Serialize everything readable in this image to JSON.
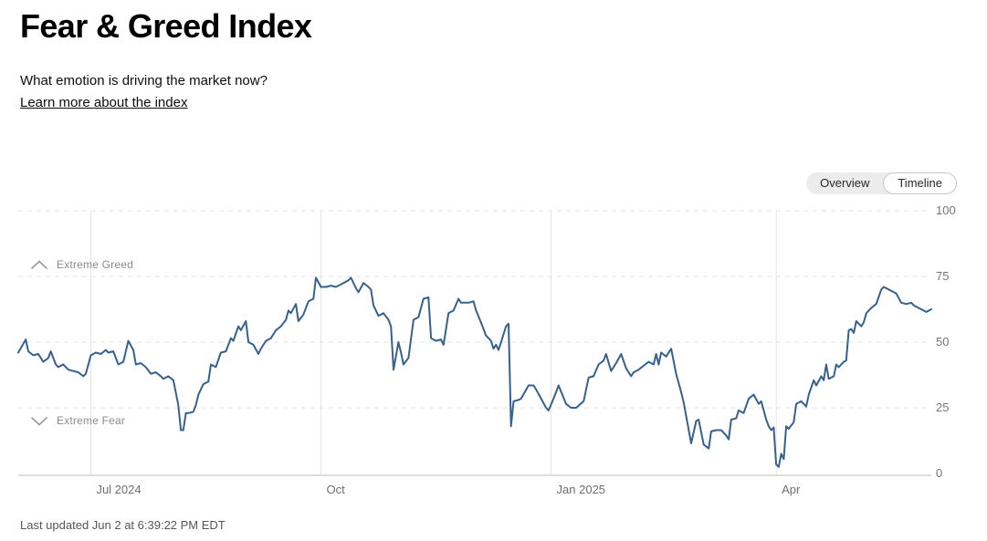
{
  "header": {
    "title": "Fear & Greed Index",
    "subtitle": "What emotion is driving the market now?",
    "link_label": "Learn more about the index"
  },
  "view_toggle": {
    "options": [
      "Overview",
      "Timeline"
    ],
    "selected": "Timeline"
  },
  "footer": {
    "last_updated": "Last updated Jun 2 at 6:39:22 PM EDT"
  },
  "colors": {
    "line": "#36618f",
    "grid_vertical": "#e5e5e5",
    "grid_dashed": "#e0e0e0",
    "axis_zero": "#c7c7c7",
    "tick_text": "#757575",
    "zone_text": "#8b8b8b",
    "chevron_icon": "#9b9b9b"
  },
  "chart_data": {
    "type": "line",
    "title": "Fear & Greed Index timeline",
    "xlabel": "",
    "ylabel": "",
    "x_axis": {
      "unit": "days since Jun 2 2024",
      "domain_days": [
        0,
        365
      ],
      "ticks": [
        {
          "label": "Jul 2024",
          "day": 29
        },
        {
          "label": "Oct",
          "day": 121
        },
        {
          "label": "Jan 2025",
          "day": 213
        },
        {
          "label": "Apr",
          "day": 303
        }
      ]
    },
    "y_axis": {
      "min": 0,
      "max": 100,
      "ticks": [
        100,
        75,
        50,
        25,
        0
      ],
      "position": "right"
    },
    "grid": {
      "horizontal": "dashed",
      "vertical": "solid",
      "zero_line": "solid"
    },
    "legend": "none",
    "annotations": [
      {
        "label": "Extreme Greed",
        "icon": "chevron-up-icon",
        "y": 79
      },
      {
        "label": "Extreme Fear",
        "icon": "chevron-down-icon",
        "y": 20
      }
    ],
    "series": [
      {
        "name": "Fear & Greed Index",
        "points": [
          [
            0,
            46
          ],
          [
            3,
            51
          ],
          [
            4,
            46.5
          ],
          [
            6,
            45
          ],
          [
            8,
            45.5
          ],
          [
            10,
            42.5
          ],
          [
            12,
            44
          ],
          [
            13,
            46.5
          ],
          [
            15,
            41.5
          ],
          [
            16,
            40.5
          ],
          [
            18,
            41.5
          ],
          [
            20,
            39.5
          ],
          [
            22,
            39
          ],
          [
            24,
            38.5
          ],
          [
            26,
            37
          ],
          [
            27,
            38
          ],
          [
            29,
            45
          ],
          [
            31,
            46
          ],
          [
            33,
            45.5
          ],
          [
            35,
            47
          ],
          [
            36,
            46
          ],
          [
            38,
            46.5
          ],
          [
            40,
            41.5
          ],
          [
            42,
            42.5
          ],
          [
            44,
            50.5
          ],
          [
            46,
            47
          ],
          [
            47,
            41.5
          ],
          [
            49,
            42
          ],
          [
            51,
            40.5
          ],
          [
            53,
            38
          ],
          [
            55,
            38.5
          ],
          [
            57,
            37
          ],
          [
            58,
            36
          ],
          [
            60,
            37
          ],
          [
            62,
            35.5
          ],
          [
            64,
            26
          ],
          [
            65,
            16.5
          ],
          [
            66,
            16.5
          ],
          [
            67,
            23
          ],
          [
            68,
            23
          ],
          [
            70,
            23.5
          ],
          [
            71,
            26
          ],
          [
            72,
            30
          ],
          [
            74,
            34
          ],
          [
            76,
            35
          ],
          [
            77,
            41.5
          ],
          [
            79,
            40.5
          ],
          [
            81,
            46
          ],
          [
            83,
            46.5
          ],
          [
            85,
            51.5
          ],
          [
            86,
            50.5
          ],
          [
            88,
            56
          ],
          [
            89,
            54.5
          ],
          [
            91,
            58
          ],
          [
            92,
            50
          ],
          [
            94,
            49
          ],
          [
            96,
            45.5
          ],
          [
            97,
            47.5
          ],
          [
            99,
            50.5
          ],
          [
            101,
            51.5
          ],
          [
            103,
            54.5
          ],
          [
            105,
            56
          ],
          [
            107,
            58.5
          ],
          [
            108,
            62
          ],
          [
            109,
            61
          ],
          [
            111,
            64.5
          ],
          [
            112,
            58
          ],
          [
            114,
            60.5
          ],
          [
            116,
            65.5
          ],
          [
            118,
            66.5
          ],
          [
            119,
            74.5
          ],
          [
            121,
            71
          ],
          [
            123,
            71
          ],
          [
            125,
            71.5
          ],
          [
            127,
            71
          ],
          [
            128,
            71.5
          ],
          [
            130,
            72.5
          ],
          [
            132,
            73.5
          ],
          [
            133,
            74.5
          ],
          [
            135,
            70.5
          ],
          [
            136,
            69
          ],
          [
            138,
            72.5
          ],
          [
            140,
            71
          ],
          [
            141,
            70
          ],
          [
            142,
            64
          ],
          [
            144,
            60
          ],
          [
            146,
            61
          ],
          [
            148,
            58.5
          ],
          [
            149,
            56
          ],
          [
            150,
            39.5
          ],
          [
            152,
            50
          ],
          [
            153,
            46
          ],
          [
            154,
            41.5
          ],
          [
            156,
            44
          ],
          [
            158,
            58.5
          ],
          [
            160,
            59.5
          ],
          [
            162,
            66.5
          ],
          [
            164,
            67
          ],
          [
            165,
            51.5
          ],
          [
            167,
            50.5
          ],
          [
            169,
            51
          ],
          [
            170,
            49
          ],
          [
            172,
            61
          ],
          [
            174,
            62
          ],
          [
            176,
            66.5
          ],
          [
            177,
            65
          ],
          [
            180,
            65
          ],
          [
            182,
            65.5
          ],
          [
            183,
            62
          ],
          [
            185,
            57.5
          ],
          [
            187,
            52.5
          ],
          [
            189,
            50.5
          ],
          [
            190,
            47.5
          ],
          [
            191,
            49
          ],
          [
            192,
            47
          ],
          [
            193,
            50
          ],
          [
            195,
            56
          ],
          [
            196,
            57
          ],
          [
            197,
            18
          ],
          [
            198,
            27.5
          ],
          [
            200,
            28
          ],
          [
            201,
            28.5
          ],
          [
            204,
            33.5
          ],
          [
            206,
            33.5
          ],
          [
            207,
            32
          ],
          [
            209,
            28.5
          ],
          [
            211,
            25
          ],
          [
            212,
            24
          ],
          [
            214,
            28.5
          ],
          [
            216,
            33.5
          ],
          [
            219,
            26.5
          ],
          [
            221,
            25
          ],
          [
            223,
            25
          ],
          [
            226,
            27.5
          ],
          [
            228,
            36.5
          ],
          [
            230,
            37
          ],
          [
            232,
            41.5
          ],
          [
            234,
            43
          ],
          [
            235,
            45.5
          ],
          [
            237,
            39
          ],
          [
            239,
            42
          ],
          [
            241,
            45.5
          ],
          [
            243,
            40
          ],
          [
            245,
            37
          ],
          [
            246,
            38.5
          ],
          [
            248,
            39.5
          ],
          [
            250,
            41
          ],
          [
            252,
            42.5
          ],
          [
            254,
            41.5
          ],
          [
            255,
            45.5
          ],
          [
            256,
            41.5
          ],
          [
            257,
            46
          ],
          [
            259,
            44.5
          ],
          [
            261,
            47.5
          ],
          [
            263,
            38
          ],
          [
            265,
            31
          ],
          [
            266,
            27
          ],
          [
            269,
            11.5
          ],
          [
            271,
            20
          ],
          [
            272,
            20.5
          ],
          [
            274,
            11
          ],
          [
            276,
            9.5
          ],
          [
            277,
            16
          ],
          [
            279,
            16.5
          ],
          [
            281,
            16.5
          ],
          [
            283,
            14.5
          ],
          [
            284,
            13
          ],
          [
            285,
            20.5
          ],
          [
            287,
            21
          ],
          [
            288,
            24
          ],
          [
            290,
            23
          ],
          [
            292,
            28.5
          ],
          [
            294,
            30
          ],
          [
            296,
            26.5
          ],
          [
            297,
            27.5
          ],
          [
            299,
            20.5
          ],
          [
            300,
            18
          ],
          [
            301,
            16.5
          ],
          [
            302,
            17.5
          ],
          [
            303,
            3.5
          ],
          [
            304,
            2.5
          ],
          [
            305,
            7.5
          ],
          [
            306,
            5.5
          ],
          [
            307,
            18
          ],
          [
            308,
            17
          ],
          [
            310,
            19.5
          ],
          [
            311,
            26.5
          ],
          [
            313,
            27.5
          ],
          [
            315,
            25.5
          ],
          [
            316,
            30
          ],
          [
            318,
            35.5
          ],
          [
            319,
            33.5
          ],
          [
            321,
            37
          ],
          [
            322,
            35.5
          ],
          [
            323,
            41.5
          ],
          [
            324,
            36
          ],
          [
            326,
            37
          ],
          [
            327,
            41.5
          ],
          [
            328,
            40.5
          ],
          [
            330,
            42.5
          ],
          [
            331,
            43
          ],
          [
            332,
            54.5
          ],
          [
            333,
            55
          ],
          [
            334,
            53.5
          ],
          [
            335,
            58
          ],
          [
            337,
            56
          ],
          [
            338,
            57.5
          ],
          [
            339,
            61
          ],
          [
            341,
            63
          ],
          [
            343,
            64.5
          ],
          [
            345,
            70
          ],
          [
            346,
            71
          ],
          [
            348,
            70
          ],
          [
            350,
            69
          ],
          [
            351,
            68.5
          ],
          [
            353,
            65
          ],
          [
            355,
            64.5
          ],
          [
            357,
            65
          ],
          [
            358,
            64
          ],
          [
            361,
            62.5
          ],
          [
            363,
            61.5
          ],
          [
            365,
            62.5
          ]
        ]
      }
    ]
  }
}
